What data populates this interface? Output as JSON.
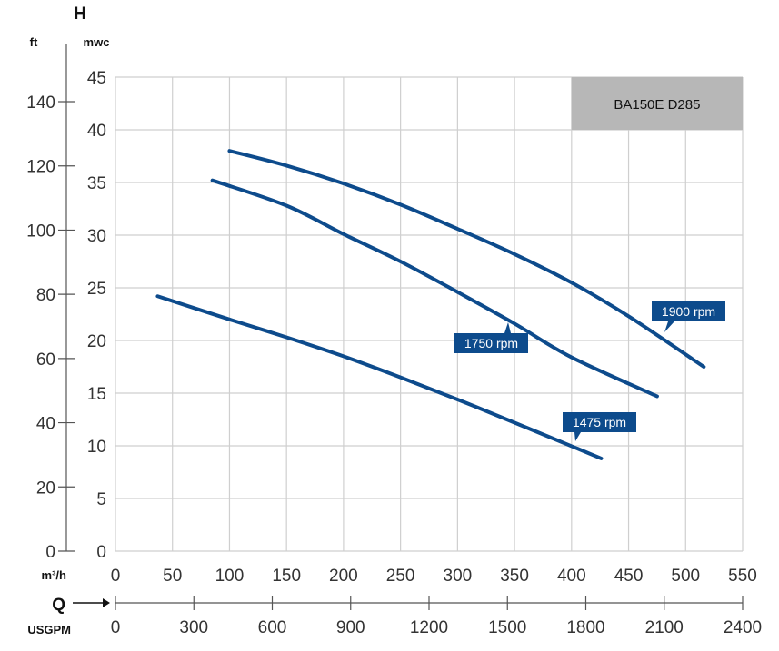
{
  "chart_data": {
    "type": "line",
    "title": "BA150E D285",
    "y_axis_symbol": "H",
    "ylabel_left": "ft",
    "ylabel": "mwc",
    "x_axis_symbol": "Q",
    "xlabel": "m³/h",
    "xlabel_secondary": "USGPM",
    "xlim": [
      0,
      550
    ],
    "ylim": [
      0,
      45
    ],
    "x_ticks": [
      0,
      50,
      100,
      150,
      200,
      250,
      300,
      350,
      400,
      450,
      500,
      550
    ],
    "y_ticks": [
      0,
      5,
      10,
      15,
      20,
      25,
      30,
      35,
      40,
      45
    ],
    "ft_ticks": [
      0,
      20,
      40,
      60,
      80,
      100,
      120,
      140
    ],
    "usgpm_ticks": [
      0,
      300,
      600,
      900,
      1200,
      1500,
      1800,
      2100,
      2400
    ],
    "grid": true,
    "colors": {
      "curve": "#0d4b8c",
      "label_bg": "#0d4b8c",
      "title_bg": "#b7b7b7",
      "grid": "#cfcfcf"
    },
    "series": [
      {
        "name": "1900 rpm",
        "x": [
          100,
          150,
          200,
          250,
          300,
          350,
          400,
          450,
          516
        ],
        "y": [
          38.0,
          36.6,
          34.9,
          32.9,
          30.6,
          28.2,
          25.5,
          22.3,
          17.5
        ]
      },
      {
        "name": "1750 rpm",
        "x": [
          85,
          150,
          200,
          250,
          300,
          350,
          400,
          475
        ],
        "y": [
          35.2,
          32.8,
          30.1,
          27.5,
          24.6,
          21.6,
          18.4,
          14.7
        ]
      },
      {
        "name": "1475 rpm",
        "x": [
          37,
          100,
          150,
          200,
          250,
          300,
          350,
          426
        ],
        "y": [
          24.2,
          22.0,
          20.3,
          18.5,
          16.5,
          14.4,
          12.2,
          8.8
        ]
      }
    ]
  }
}
